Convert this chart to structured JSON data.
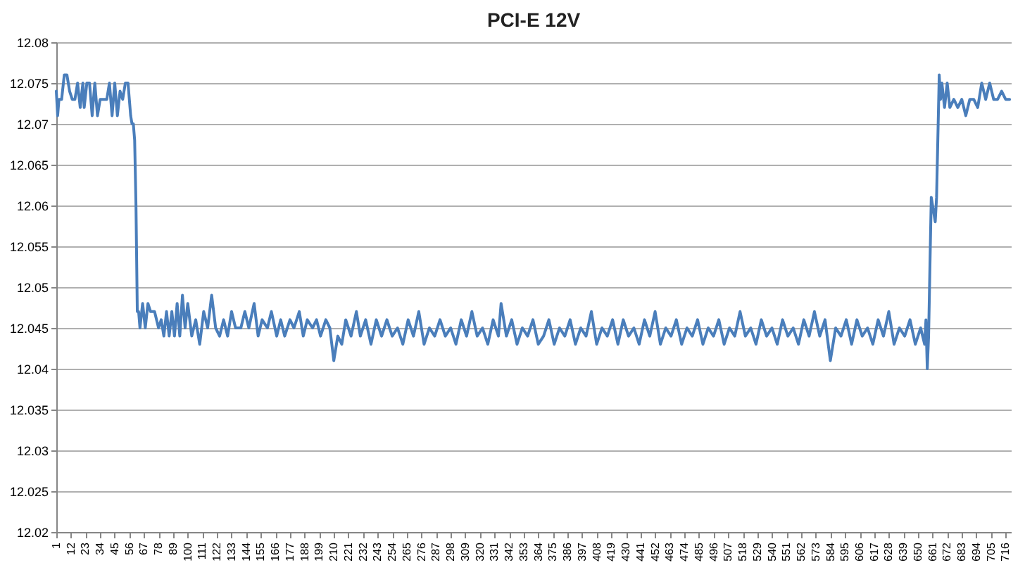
{
  "chart_data": {
    "type": "line",
    "title": "PCI-E 12V",
    "x": [
      1,
      2,
      3,
      5,
      7,
      9,
      11,
      13,
      15,
      17,
      19,
      21,
      22,
      24,
      26,
      28,
      30,
      32,
      34,
      37,
      39,
      41,
      43,
      45,
      47,
      49,
      51,
      53,
      55,
      57,
      58,
      59,
      60,
      61,
      62,
      63,
      64,
      66,
      68,
      70,
      72,
      75,
      78,
      80,
      82,
      84,
      86,
      88,
      90,
      92,
      94,
      96,
      98,
      100,
      103,
      106,
      109,
      112,
      115,
      118,
      121,
      124,
      127,
      130,
      133,
      136,
      140,
      143,
      146,
      150,
      153,
      156,
      160,
      163,
      167,
      170,
      173,
      177,
      180,
      184,
      187,
      190,
      194,
      197,
      200,
      204,
      207,
      210,
      213,
      216,
      219,
      223,
      227,
      230,
      234,
      238,
      242,
      246,
      250,
      254,
      258,
      262,
      266,
      270,
      274,
      278,
      282,
      286,
      290,
      294,
      298,
      302,
      306,
      310,
      314,
      318,
      322,
      326,
      330,
      334,
      336,
      340,
      344,
      348,
      352,
      356,
      360,
      364,
      368,
      372,
      376,
      380,
      384,
      388,
      392,
      396,
      400,
      404,
      408,
      412,
      416,
      420,
      424,
      428,
      432,
      436,
      440,
      444,
      448,
      452,
      456,
      460,
      464,
      468,
      472,
      476,
      480,
      484,
      488,
      492,
      496,
      500,
      504,
      508,
      512,
      516,
      520,
      524,
      528,
      532,
      536,
      540,
      544,
      548,
      552,
      556,
      560,
      564,
      568,
      572,
      576,
      580,
      584,
      588,
      592,
      596,
      600,
      604,
      608,
      612,
      616,
      620,
      624,
      628,
      632,
      636,
      640,
      644,
      648,
      652,
      655,
      656,
      657,
      658,
      660,
      662,
      663,
      664,
      666,
      667,
      668,
      670,
      672,
      674,
      677,
      680,
      683,
      686,
      689,
      692,
      695,
      698,
      701,
      704,
      707,
      710,
      713,
      716,
      719
    ],
    "series": [
      {
        "color": "#4a7ebb",
        "values": [
          12.074,
          12.071,
          12.073,
          12.073,
          12.076,
          12.076,
          12.074,
          12.073,
          12.073,
          12.075,
          12.072,
          12.075,
          12.072,
          12.075,
          12.075,
          12.071,
          12.075,
          12.071,
          12.073,
          12.073,
          12.073,
          12.075,
          12.071,
          12.075,
          12.071,
          12.074,
          12.073,
          12.075,
          12.075,
          12.071,
          12.07,
          12.07,
          12.068,
          12.06,
          12.047,
          12.047,
          12.045,
          12.048,
          12.045,
          12.048,
          12.047,
          12.047,
          12.045,
          12.046,
          12.044,
          12.047,
          12.044,
          12.047,
          12.044,
          12.048,
          12.044,
          12.049,
          12.045,
          12.048,
          12.044,
          12.046,
          12.043,
          12.047,
          12.045,
          12.049,
          12.045,
          12.044,
          12.046,
          12.044,
          12.047,
          12.045,
          12.045,
          12.047,
          12.045,
          12.048,
          12.044,
          12.046,
          12.045,
          12.047,
          12.044,
          12.046,
          12.044,
          12.046,
          12.045,
          12.047,
          12.044,
          12.046,
          12.045,
          12.046,
          12.044,
          12.046,
          12.045,
          12.041,
          12.044,
          12.043,
          12.046,
          12.044,
          12.047,
          12.044,
          12.046,
          12.043,
          12.046,
          12.044,
          12.046,
          12.044,
          12.045,
          12.043,
          12.046,
          12.044,
          12.047,
          12.043,
          12.045,
          12.044,
          12.046,
          12.044,
          12.045,
          12.043,
          12.046,
          12.044,
          12.047,
          12.044,
          12.045,
          12.043,
          12.046,
          12.044,
          12.048,
          12.044,
          12.046,
          12.043,
          12.045,
          12.044,
          12.046,
          12.043,
          12.044,
          12.046,
          12.043,
          12.045,
          12.044,
          12.046,
          12.043,
          12.045,
          12.044,
          12.047,
          12.043,
          12.045,
          12.044,
          12.046,
          12.043,
          12.046,
          12.044,
          12.045,
          12.043,
          12.046,
          12.044,
          12.047,
          12.043,
          12.045,
          12.044,
          12.046,
          12.043,
          12.045,
          12.044,
          12.046,
          12.043,
          12.045,
          12.044,
          12.046,
          12.043,
          12.045,
          12.044,
          12.047,
          12.044,
          12.045,
          12.043,
          12.046,
          12.044,
          12.045,
          12.043,
          12.046,
          12.044,
          12.045,
          12.043,
          12.046,
          12.044,
          12.047,
          12.044,
          12.046,
          12.041,
          12.045,
          12.044,
          12.046,
          12.043,
          12.046,
          12.044,
          12.045,
          12.043,
          12.046,
          12.044,
          12.047,
          12.043,
          12.045,
          12.044,
          12.046,
          12.043,
          12.045,
          12.043,
          12.046,
          12.04,
          12.044,
          12.061,
          12.059,
          12.058,
          12.061,
          12.076,
          12.073,
          12.075,
          12.072,
          12.075,
          12.072,
          12.073,
          12.072,
          12.073,
          12.071,
          12.073,
          12.073,
          12.072,
          12.075,
          12.073,
          12.075,
          12.073,
          12.073,
          12.074,
          12.073,
          12.073
        ]
      }
    ],
    "xlim": [
      1,
      720
    ],
    "xticks": [
      1,
      12,
      23,
      34,
      45,
      56,
      67,
      78,
      89,
      100,
      111,
      122,
      133,
      144,
      155,
      166,
      177,
      188,
      199,
      210,
      221,
      232,
      243,
      254,
      265,
      276,
      287,
      298,
      309,
      320,
      331,
      342,
      353,
      364,
      375,
      386,
      397,
      408,
      419,
      430,
      441,
      452,
      463,
      474,
      485,
      496,
      507,
      518,
      529,
      540,
      551,
      562,
      573,
      584,
      595,
      606,
      617,
      628,
      639,
      650,
      661,
      672,
      683,
      694,
      705,
      716
    ],
    "ylim": [
      12.02,
      12.08
    ],
    "yticks": [
      12.02,
      12.025,
      12.03,
      12.035,
      12.04,
      12.045,
      12.05,
      12.055,
      12.06,
      12.065,
      12.07,
      12.075,
      12.08
    ],
    "grid": "y",
    "marker": "none",
    "line_style": "solid"
  }
}
